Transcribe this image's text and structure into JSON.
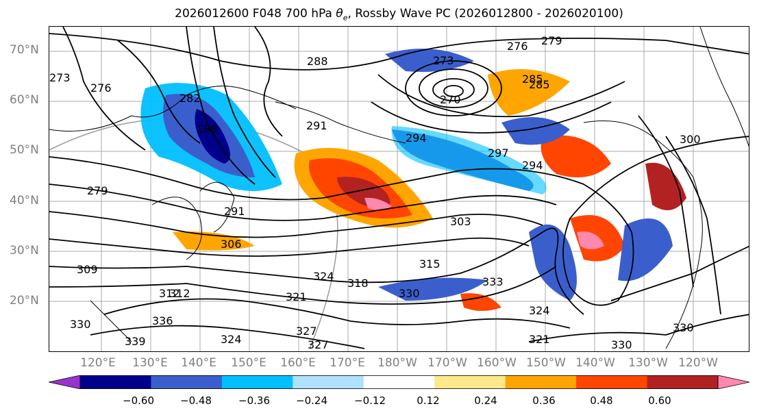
{
  "title": {
    "prefix": "2026012600 F048 700 hPa ",
    "symbol": "θ",
    "subscript": "e",
    "suffix": ", Rossby Wave PC (2026012800 - 2026020100)"
  },
  "lat_labels": [
    "70°N",
    "60°N",
    "50°N",
    "40°N",
    "30°N",
    "20°N"
  ],
  "lon_labels": [
    "120°E",
    "130°E",
    "140°E",
    "150°E",
    "160°E",
    "170°E",
    "180°W",
    "170°W",
    "160°W",
    "150°W",
    "140°W",
    "130°W",
    "120°W"
  ],
  "contour_labels": [
    "279",
    "276",
    "273",
    "288",
    "285",
    "276",
    "282",
    "273",
    "270",
    "288",
    "291",
    "294",
    "294",
    "297",
    "300",
    "279",
    "291",
    "303",
    "306",
    "309",
    "312",
    "315",
    "318",
    "321",
    "324",
    "327",
    "330",
    "333",
    "336",
    "339",
    "324",
    "327",
    "330",
    "330",
    "321",
    "324",
    "330",
    "312",
    "285"
  ],
  "colorbar": {
    "colors": [
      "#9932cc",
      "#00008b",
      "#3a5fcd",
      "#00bfff",
      "#b0e2ff",
      "#ffffff",
      "#ffe88c",
      "#ffa500",
      "#ff4500",
      "#b22222",
      "#ff88b0"
    ],
    "ticks": [
      "−0.60",
      "−0.48",
      "−0.36",
      "−0.24",
      "−0.12",
      "0.12",
      "0.24",
      "0.36",
      "0.48",
      "0.60"
    ]
  },
  "map": {
    "land_outline_color": "#000000",
    "grid_color": "#aaaaaa"
  }
}
